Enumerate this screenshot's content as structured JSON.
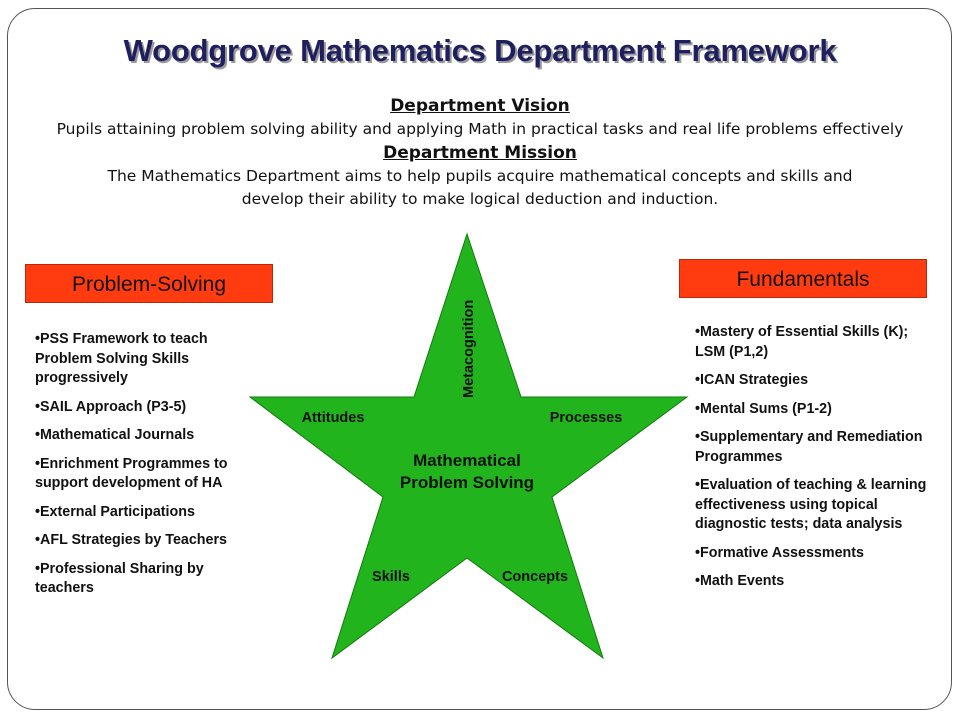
{
  "title": "Woodgrove Mathematics Department Framework",
  "vision": {
    "heading": "Department Vision",
    "text": "Pupils attaining problem solving ability and applying Math in practical tasks and real life problems effectively"
  },
  "mission": {
    "heading": "Department Mission",
    "line1": "The Mathematics Department aims to help pupils acquire mathematical concepts and skills and",
    "line2": "develop their ability to make logical deduction and induction."
  },
  "left": {
    "heading": "Problem-Solving",
    "items": [
      "•PSS Framework to teach Problem Solving Skills progressively",
      "•SAIL Approach (P3-5)",
      "•Mathematical Journals",
      "•Enrichment Programmes to support development of HA",
      "•External Participations",
      "•AFL Strategies by Teachers",
      "•Professional Sharing by teachers"
    ]
  },
  "right": {
    "heading": "Fundamentals",
    "items": [
      "•Mastery of Essential Skills (K); LSM (P1,2)",
      "•ICAN Strategies",
      "•Mental Sums (P1-2)",
      "•Supplementary and Remediation Programmes",
      "•Evaluation of  teaching & learning effectiveness using topical diagnostic tests; data analysis",
      "•Formative Assessments",
      "•Math Events"
    ]
  },
  "star": {
    "center_line1": "Mathematical",
    "center_line2": "Problem Solving",
    "metacognition": "Metacognition",
    "attitudes": "Attitudes",
    "processes": "Processes",
    "skills": "Skills",
    "concepts": "Concepts",
    "fill_color": "#22b41c"
  },
  "colors": {
    "box_fill": "#ff3b0f",
    "title": "#1f1f5f"
  }
}
